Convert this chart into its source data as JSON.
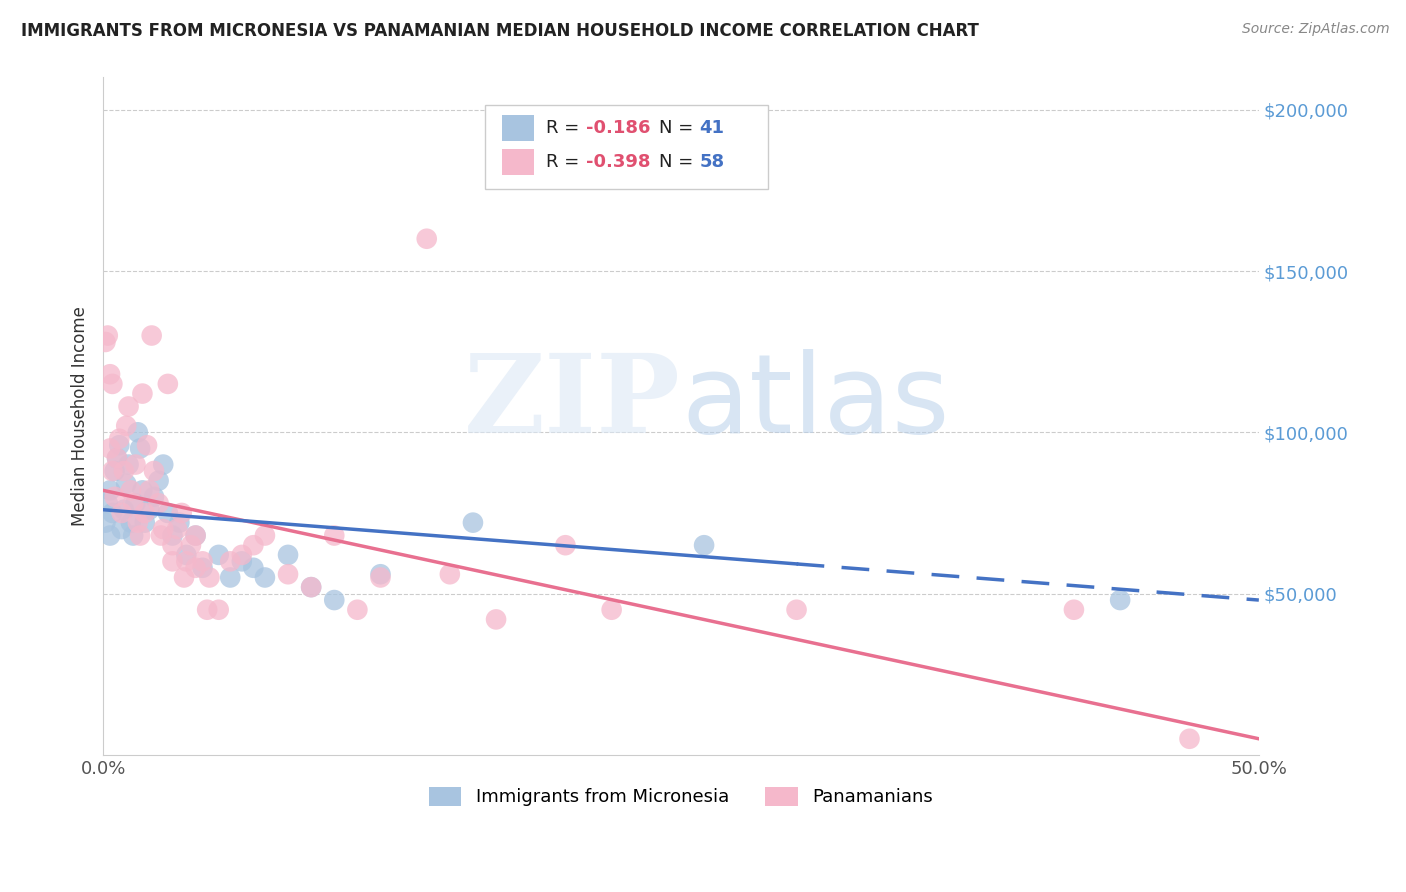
{
  "title": "IMMIGRANTS FROM MICRONESIA VS PANAMANIAN MEDIAN HOUSEHOLD INCOME CORRELATION CHART",
  "source": "Source: ZipAtlas.com",
  "ylabel": "Median Household Income",
  "xlim": [
    0.0,
    0.5
  ],
  "ylim": [
    0,
    210000
  ],
  "yticks": [
    0,
    50000,
    100000,
    150000,
    200000
  ],
  "ytick_labels": [
    "",
    "$50,000",
    "$100,000",
    "$150,000",
    "$200,000"
  ],
  "xticks": [
    0.0,
    0.1,
    0.2,
    0.3,
    0.4,
    0.5
  ],
  "xtick_labels": [
    "0.0%",
    "",
    "",
    "",
    "",
    "50.0%"
  ],
  "blue_R": -0.186,
  "blue_N": 41,
  "pink_R": -0.398,
  "pink_N": 58,
  "blue_color": "#a8c4e0",
  "pink_color": "#f5b8cb",
  "blue_line_color": "#4472c4",
  "pink_line_color": "#e87090",
  "legend_label_blue": "Immigrants from Micronesia",
  "legend_label_pink": "Panamanians",
  "blue_x": [
    0.001,
    0.002,
    0.003,
    0.003,
    0.004,
    0.005,
    0.006,
    0.007,
    0.008,
    0.009,
    0.01,
    0.011,
    0.012,
    0.013,
    0.014,
    0.015,
    0.016,
    0.017,
    0.018,
    0.02,
    0.022,
    0.024,
    0.026,
    0.028,
    0.03,
    0.033,
    0.036,
    0.04,
    0.043,
    0.05,
    0.055,
    0.06,
    0.065,
    0.07,
    0.08,
    0.09,
    0.1,
    0.12,
    0.16,
    0.26,
    0.44
  ],
  "blue_y": [
    72000,
    78000,
    82000,
    68000,
    75000,
    88000,
    92000,
    96000,
    70000,
    76000,
    84000,
    90000,
    72000,
    68000,
    78000,
    100000,
    95000,
    82000,
    72000,
    76000,
    80000,
    85000,
    90000,
    75000,
    68000,
    72000,
    62000,
    68000,
    58000,
    62000,
    55000,
    60000,
    58000,
    55000,
    62000,
    52000,
    48000,
    56000,
    72000,
    65000,
    48000
  ],
  "pink_x": [
    0.001,
    0.002,
    0.003,
    0.003,
    0.004,
    0.004,
    0.005,
    0.006,
    0.007,
    0.008,
    0.009,
    0.01,
    0.011,
    0.012,
    0.013,
    0.014,
    0.015,
    0.016,
    0.017,
    0.018,
    0.019,
    0.02,
    0.021,
    0.022,
    0.024,
    0.026,
    0.028,
    0.03,
    0.032,
    0.034,
    0.036,
    0.038,
    0.04,
    0.043,
    0.046,
    0.05,
    0.055,
    0.06,
    0.065,
    0.07,
    0.08,
    0.09,
    0.1,
    0.11,
    0.12,
    0.14,
    0.15,
    0.17,
    0.2,
    0.22,
    0.025,
    0.03,
    0.035,
    0.04,
    0.045,
    0.3,
    0.42,
    0.47
  ],
  "pink_y": [
    128000,
    130000,
    118000,
    95000,
    115000,
    88000,
    80000,
    92000,
    98000,
    75000,
    88000,
    102000,
    108000,
    82000,
    78000,
    90000,
    72000,
    68000,
    112000,
    75000,
    96000,
    82000,
    130000,
    88000,
    78000,
    70000,
    115000,
    65000,
    70000,
    75000,
    60000,
    65000,
    68000,
    60000,
    55000,
    45000,
    60000,
    62000,
    65000,
    68000,
    56000,
    52000,
    68000,
    45000,
    55000,
    160000,
    56000,
    42000,
    65000,
    45000,
    68000,
    60000,
    55000,
    58000,
    45000,
    45000,
    45000,
    5000
  ]
}
